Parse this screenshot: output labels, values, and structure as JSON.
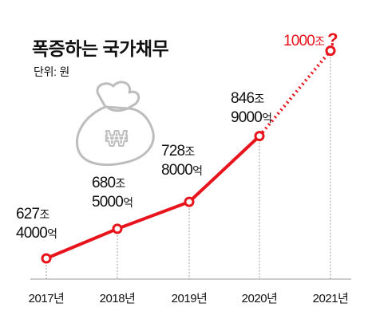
{
  "title": "폭증하는 국가채무",
  "unit_label": "단위: 원",
  "colors": {
    "line": "#e8141c",
    "marker_fill": "#ffffff",
    "dash": "#e8141c",
    "grid": "#9a9a9a",
    "baseline": "#9a9a9a",
    "moneybag": "#bdbdbd"
  },
  "icons": [
    "moneybag-won-icon"
  ],
  "chart_data": {
    "type": "line",
    "categories": [
      "2017년",
      "2018년",
      "2019년",
      "2020년",
      "2021년"
    ],
    "values_trillion_won": [
      627.4,
      680.5,
      728.8,
      846.9,
      1000
    ],
    "labels": [
      {
        "line1": "627",
        "unit1": "조",
        "line2": "4000",
        "unit2": "억"
      },
      {
        "line1": "680",
        "unit1": "조",
        "line2": "5000",
        "unit2": "억"
      },
      {
        "line1": "728",
        "unit1": "조",
        "line2": "8000",
        "unit2": "억"
      },
      {
        "line1": "846",
        "unit1": "조",
        "line2": "9000",
        "unit2": "억"
      },
      {
        "line1": "1000",
        "unit1": "조",
        "line2": "",
        "unit2": "",
        "suffix": "?"
      }
    ],
    "segments": [
      {
        "from": 0,
        "to": 3,
        "style": "solid"
      },
      {
        "from": 3,
        "to": 4,
        "style": "dotted"
      }
    ],
    "title": "폭증하는 국가채무",
    "ylabel": "단위: 원",
    "grid": "vertical dotted lines at each year"
  }
}
